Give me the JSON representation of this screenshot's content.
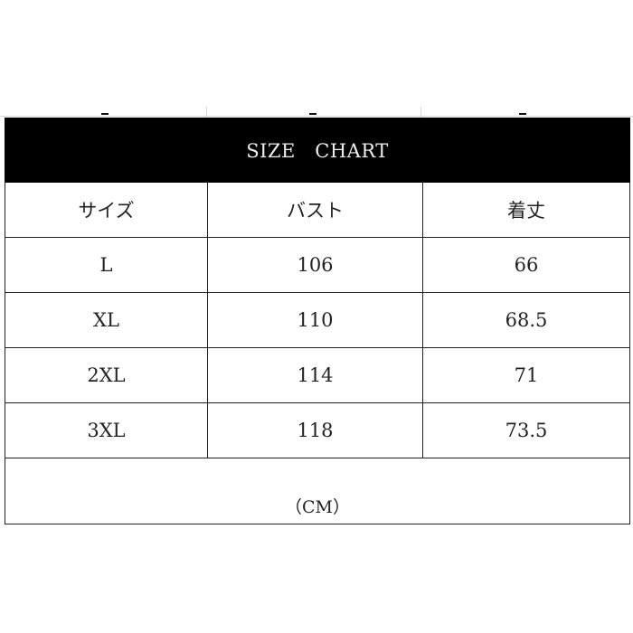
{
  "title": "SIZE　CHART",
  "columns": [
    "サイズ",
    "バスト",
    "着丈"
  ],
  "rows": [
    [
      "L",
      "106",
      "66"
    ],
    [
      "XL",
      "110",
      "68.5"
    ],
    [
      "2XL",
      "114",
      "71"
    ],
    [
      "3XL",
      "118",
      "73.5"
    ]
  ],
  "unit": "（CM）"
}
